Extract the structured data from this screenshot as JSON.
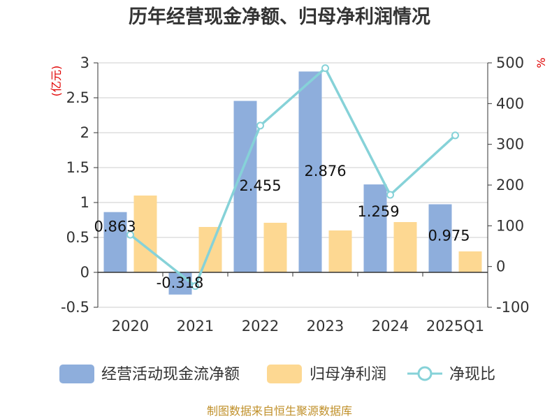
{
  "chart_data": {
    "type": "bar+line",
    "title": "历年经营现金净额、归母净利润情况",
    "categories": [
      "2020",
      "2021",
      "2022",
      "2023",
      "2024",
      "2025Q1"
    ],
    "series": [
      {
        "name": "经营活动现金流净额",
        "type": "bar",
        "axis": "left",
        "color": "#8eaedc",
        "values": [
          0.863,
          -0.318,
          2.455,
          2.876,
          1.259,
          0.975
        ]
      },
      {
        "name": "归母净利润",
        "type": "bar",
        "axis": "left",
        "color": "#fdd892",
        "values": [
          1.1,
          0.65,
          0.71,
          0.6,
          0.72,
          0.3
        ]
      },
      {
        "name": "净现比",
        "type": "line",
        "axis": "right",
        "color": "#86d2d8",
        "values": [
          78,
          -48,
          346,
          487,
          176,
          322
        ]
      }
    ],
    "data_labels": [
      "0.863",
      "-0.318",
      "2.455",
      "2.876",
      "1.259",
      "0.975"
    ],
    "y_left": {
      "unit": "(亿元)",
      "min": -0.5,
      "max": 3,
      "ticks": [
        "-0.5",
        "0",
        "0.5",
        "1",
        "1.5",
        "2",
        "2.5",
        "3"
      ]
    },
    "y_right": {
      "unit": "%",
      "min": -100,
      "max": 500,
      "ticks": [
        "-100",
        "0",
        "100",
        "200",
        "300",
        "400",
        "500"
      ]
    },
    "legend_position": "bottom"
  },
  "footer": "制图数据来自恒生聚源数据库"
}
